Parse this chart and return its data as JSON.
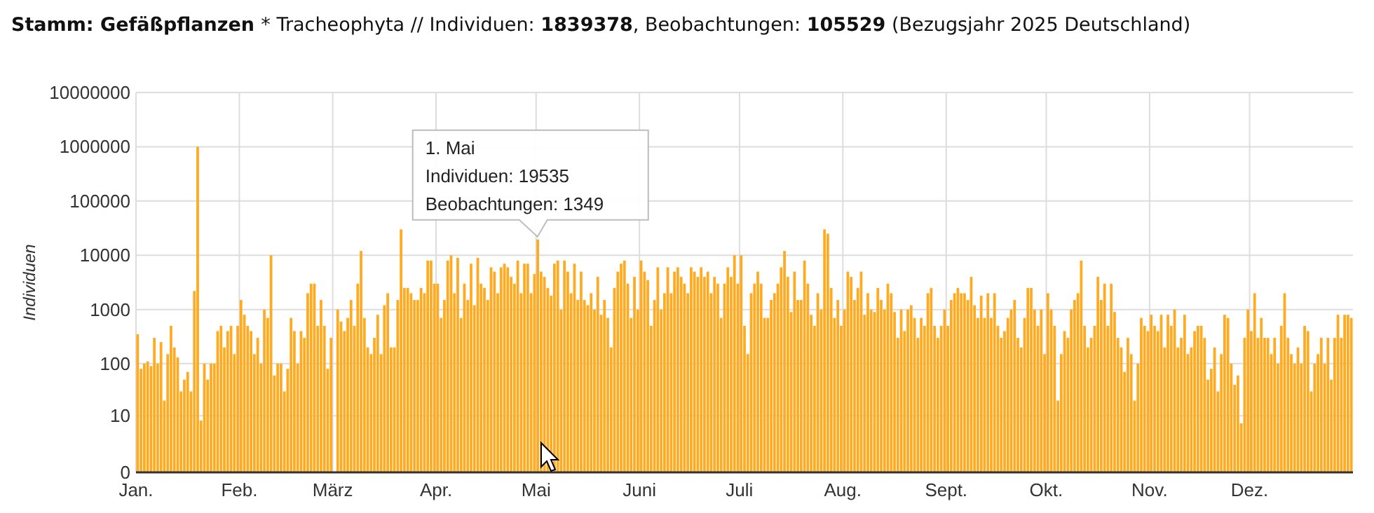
{
  "chart_data": {
    "type": "bar",
    "title": "Stamm: Gefäßpflanzen * Tracheophyta // Individuen: 1839378, Beobachtungen: 105529 (Bezugsjahr 2025 Deutschland)",
    "ylabel": "Individuen",
    "log": true,
    "grid": true,
    "xlim": [
      "2025-01-01",
      "2026-01-01"
    ],
    "xticks": [
      {
        "value": "2025-01-01",
        "label": "Jan."
      },
      {
        "value": "2025-02-01",
        "label": "Feb."
      },
      {
        "value": "2025-03-01",
        "label": "März"
      },
      {
        "value": "2025-04-01",
        "label": "Apr."
      },
      {
        "value": "2025-05-01",
        "label": "Mai"
      },
      {
        "value": "2025-06-01",
        "label": "Juni"
      },
      {
        "value": "2025-07-01",
        "label": "Juli"
      },
      {
        "value": "2025-08-01",
        "label": "Aug."
      },
      {
        "value": "2025-09-01",
        "label": "Sept."
      },
      {
        "value": "2025-10-01",
        "label": "Okt."
      },
      {
        "value": "2025-11-01",
        "label": "Nov."
      },
      {
        "value": "2025-12-01",
        "label": "Dez."
      }
    ],
    "ylim": [
      0,
      10000000
    ],
    "yticks": [
      0,
      10,
      100,
      1000,
      10000,
      100000,
      1000000,
      10000000
    ],
    "annotations": [
      {
        "text": "1. Mai\nIndividuen: 19535\nBeobachtungen: 1349",
        "x": "2025-05-01",
        "y": 19535
      }
    ],
    "x": [
      "2025-01-01",
      "2025-01-02",
      "2025-01-03",
      "2025-01-04",
      "2025-01-05",
      "2025-01-06",
      "2025-01-07",
      "2025-01-08",
      "2025-01-09",
      "2025-01-10",
      "2025-01-11",
      "2025-01-12",
      "2025-01-13",
      "2025-01-14",
      "2025-01-15",
      "2025-01-16",
      "2025-01-17",
      "2025-01-18",
      "2025-01-19",
      "2025-01-20",
      "2025-01-21",
      "2025-01-22",
      "2025-01-23",
      "2025-01-24",
      "2025-01-25",
      "2025-01-26",
      "2025-01-27",
      "2025-01-28",
      "2025-01-29",
      "2025-01-30",
      "2025-01-31",
      "2025-02-01",
      "2025-02-02",
      "2025-02-03",
      "2025-02-04",
      "2025-02-05",
      "2025-02-06",
      "2025-02-07",
      "2025-02-08",
      "2025-02-09",
      "2025-02-10",
      "2025-02-11",
      "2025-02-12",
      "2025-02-13",
      "2025-02-14",
      "2025-02-15",
      "2025-02-16",
      "2025-02-17",
      "2025-02-18",
      "2025-02-19",
      "2025-02-20",
      "2025-02-21",
      "2025-02-22",
      "2025-02-23",
      "2025-02-24",
      "2025-02-25",
      "2025-02-26",
      "2025-02-27",
      "2025-02-28",
      "2025-03-01",
      "2025-03-02",
      "2025-03-03",
      "2025-03-04",
      "2025-03-05",
      "2025-03-06",
      "2025-03-07",
      "2025-03-08",
      "2025-03-09",
      "2025-03-10",
      "2025-03-11",
      "2025-03-12",
      "2025-03-13",
      "2025-03-14",
      "2025-03-15",
      "2025-03-16",
      "2025-03-17",
      "2025-03-18",
      "2025-03-19",
      "2025-03-20",
      "2025-03-21",
      "2025-03-22",
      "2025-03-23",
      "2025-03-24",
      "2025-03-25",
      "2025-03-26",
      "2025-03-27",
      "2025-03-28",
      "2025-03-29",
      "2025-03-30",
      "2025-03-31",
      "2025-04-01",
      "2025-04-02",
      "2025-04-03",
      "2025-04-04",
      "2025-04-05",
      "2025-04-06",
      "2025-04-07",
      "2025-04-08",
      "2025-04-09",
      "2025-04-10",
      "2025-04-11",
      "2025-04-12",
      "2025-04-13",
      "2025-04-14",
      "2025-04-15",
      "2025-04-16",
      "2025-04-17",
      "2025-04-18",
      "2025-04-19",
      "2025-04-20",
      "2025-04-21",
      "2025-04-22",
      "2025-04-23",
      "2025-04-24",
      "2025-04-25",
      "2025-04-26",
      "2025-04-27",
      "2025-04-28",
      "2025-04-29",
      "2025-04-30",
      "2025-05-01",
      "2025-05-02",
      "2025-05-03",
      "2025-05-04",
      "2025-05-05",
      "2025-05-06",
      "2025-05-07",
      "2025-05-08",
      "2025-05-09",
      "2025-05-10",
      "2025-05-11",
      "2025-05-12",
      "2025-05-13",
      "2025-05-14",
      "2025-05-15",
      "2025-05-16",
      "2025-05-17",
      "2025-05-18",
      "2025-05-19",
      "2025-05-20",
      "2025-05-21",
      "2025-05-22",
      "2025-05-23",
      "2025-05-24",
      "2025-05-25",
      "2025-05-26",
      "2025-05-27",
      "2025-05-28",
      "2025-05-29",
      "2025-05-30",
      "2025-05-31",
      "2025-06-01",
      "2025-06-02",
      "2025-06-03",
      "2025-06-04",
      "2025-06-05",
      "2025-06-06",
      "2025-06-07",
      "2025-06-08",
      "2025-06-09",
      "2025-06-10",
      "2025-06-11",
      "2025-06-12",
      "2025-06-13",
      "2025-06-14",
      "2025-06-15",
      "2025-06-16",
      "2025-06-17",
      "2025-06-18",
      "2025-06-19",
      "2025-06-20",
      "2025-06-21",
      "2025-06-22",
      "2025-06-23",
      "2025-06-24",
      "2025-06-25",
      "2025-06-26",
      "2025-06-27",
      "2025-06-28",
      "2025-06-29",
      "2025-06-30",
      "2025-07-01",
      "2025-07-02",
      "2025-07-03",
      "2025-07-04",
      "2025-07-05",
      "2025-07-06",
      "2025-07-07",
      "2025-07-08",
      "2025-07-09",
      "2025-07-10",
      "2025-07-11",
      "2025-07-12",
      "2025-07-13",
      "2025-07-14",
      "2025-07-15",
      "2025-07-16",
      "2025-07-17",
      "2025-07-18",
      "2025-07-19",
      "2025-07-20",
      "2025-07-21",
      "2025-07-22",
      "2025-07-23",
      "2025-07-24",
      "2025-07-25",
      "2025-07-26",
      "2025-07-27",
      "2025-07-28",
      "2025-07-29",
      "2025-07-30",
      "2025-07-31",
      "2025-08-01",
      "2025-08-02",
      "2025-08-03",
      "2025-08-04",
      "2025-08-05",
      "2025-08-06",
      "2025-08-07",
      "2025-08-08",
      "2025-08-09",
      "2025-08-10",
      "2025-08-11",
      "2025-08-12",
      "2025-08-13",
      "2025-08-14",
      "2025-08-15",
      "2025-08-16",
      "2025-08-17",
      "2025-08-18",
      "2025-08-19",
      "2025-08-20",
      "2025-08-21",
      "2025-08-22",
      "2025-08-23",
      "2025-08-24",
      "2025-08-25",
      "2025-08-26",
      "2025-08-27",
      "2025-08-28",
      "2025-08-29",
      "2025-08-30",
      "2025-08-31",
      "2025-09-01",
      "2025-09-02",
      "2025-09-03",
      "2025-09-04",
      "2025-09-05",
      "2025-09-06",
      "2025-09-07",
      "2025-09-08",
      "2025-09-09",
      "2025-09-10",
      "2025-09-11",
      "2025-09-12",
      "2025-09-13",
      "2025-09-14",
      "2025-09-15",
      "2025-09-16",
      "2025-09-17",
      "2025-09-18",
      "2025-09-19",
      "2025-09-20",
      "2025-09-21",
      "2025-09-22",
      "2025-09-23",
      "2025-09-24",
      "2025-09-25",
      "2025-09-26",
      "2025-09-27",
      "2025-09-28",
      "2025-09-29",
      "2025-09-30",
      "2025-10-01",
      "2025-10-02",
      "2025-10-03",
      "2025-10-04",
      "2025-10-05",
      "2025-10-06",
      "2025-10-07",
      "2025-10-08",
      "2025-10-09",
      "2025-10-10",
      "2025-10-11",
      "2025-10-12",
      "2025-10-13",
      "2025-10-14",
      "2025-10-15",
      "2025-10-16",
      "2025-10-17",
      "2025-10-18",
      "2025-10-19",
      "2025-10-20",
      "2025-10-21",
      "2025-10-22",
      "2025-10-23",
      "2025-10-24",
      "2025-10-25",
      "2025-10-26",
      "2025-10-27",
      "2025-10-28",
      "2025-10-29",
      "2025-10-30",
      "2025-10-31",
      "2025-11-01",
      "2025-11-02",
      "2025-11-03",
      "2025-11-04",
      "2025-11-05",
      "2025-11-06",
      "2025-11-07",
      "2025-11-08",
      "2025-11-09",
      "2025-11-10",
      "2025-11-11",
      "2025-11-12",
      "2025-11-13",
      "2025-11-14",
      "2025-11-15",
      "2025-11-16",
      "2025-11-17",
      "2025-11-18",
      "2025-11-19",
      "2025-11-20",
      "2025-11-21",
      "2025-11-22",
      "2025-11-23",
      "2025-11-24",
      "2025-11-25",
      "2025-11-26",
      "2025-11-27",
      "2025-11-28",
      "2025-11-29",
      "2025-11-30",
      "2025-12-01",
      "2025-12-02",
      "2025-12-03",
      "2025-12-04",
      "2025-12-05",
      "2025-12-06",
      "2025-12-07",
      "2025-12-08",
      "2025-12-09",
      "2025-12-10",
      "2025-12-11",
      "2025-12-12",
      "2025-12-13",
      "2025-12-14",
      "2025-12-15",
      "2025-12-16",
      "2025-12-17",
      "2025-12-18",
      "2025-12-19",
      "2025-12-20",
      "2025-12-21",
      "2025-12-22",
      "2025-12-23",
      "2025-12-24",
      "2025-12-25",
      "2025-12-26",
      "2025-12-27",
      "2025-12-28",
      "2025-12-29",
      "2025-12-30",
      "2025-12-31"
    ],
    "series": [
      {
        "color": "#ffaa1f",
        "values": [
          350,
          80,
          100,
          110,
          90,
          300,
          100,
          250,
          20,
          150,
          500,
          200,
          130,
          30,
          50,
          70,
          30,
          2200,
          1000000,
          8,
          100,
          50,
          100,
          100,
          400,
          500,
          200,
          400,
          500,
          150,
          500,
          1500,
          800,
          500,
          400,
          150,
          300,
          100,
          1000,
          700,
          10000,
          60,
          100,
          100,
          30,
          80,
          700,
          400,
          100,
          400,
          300,
          2000,
          3000,
          3000,
          500,
          1500,
          500,
          80,
          300,
          0,
          1000,
          600,
          400,
          700,
          1500,
          500,
          3000,
          12000,
          700,
          200,
          150,
          300,
          800,
          150,
          1200,
          2000,
          200,
          200,
          1500,
          30000,
          2500,
          2500,
          2000,
          1500,
          1500,
          2500,
          2000,
          8000,
          8000,
          3000,
          3000,
          700,
          1500,
          8000,
          10000,
          2000,
          9000,
          700,
          3000,
          1500,
          7000,
          1200,
          9000,
          3000,
          2500,
          1500,
          6000,
          5000,
          2000,
          6000,
          7000,
          6000,
          4000,
          3000,
          8000,
          2000,
          7000,
          7000,
          2000,
          4500,
          19535,
          5000,
          4000,
          2500,
          1800,
          7000,
          8000,
          1000,
          8000,
          5000,
          2000,
          7000,
          1500,
          5000,
          1500,
          1200,
          2000,
          1000,
          4000,
          800,
          1500,
          700,
          200,
          2500,
          5000,
          7000,
          8000,
          3000,
          700,
          4000,
          1000,
          8000,
          5000,
          3500,
          500,
          1500,
          6000,
          1000,
          2000,
          6000,
          2000,
          5000,
          6000,
          4000,
          3000,
          2000,
          6000,
          5000,
          4000,
          6000,
          4000,
          5000,
          2000,
          4000,
          3000,
          700,
          3000,
          6000,
          4000,
          10000,
          3000,
          10000,
          500,
          150,
          2000,
          3000,
          5000,
          3000,
          700,
          700,
          1500,
          2000,
          3000,
          6000,
          12000,
          4000,
          900,
          5000,
          1500,
          1500,
          8000,
          3000,
          800,
          500,
          2000,
          1000,
          30000,
          25000,
          2500,
          700,
          1500,
          500,
          1000,
          5000,
          4000,
          1500,
          2500,
          5000,
          800,
          2000,
          1000,
          900,
          2500,
          1500,
          1000,
          3000,
          2000,
          900,
          300,
          1000,
          400,
          1000,
          1200,
          700,
          300,
          700,
          500,
          2000,
          2500,
          500,
          300,
          500,
          1000,
          500,
          1500,
          2000,
          2500,
          2000,
          2000,
          1500,
          4000,
          1200,
          700,
          1800,
          700,
          2000,
          700,
          2000,
          500,
          300,
          400,
          700,
          1000,
          1500,
          300,
          200,
          700,
          2500,
          2500,
          1000,
          500,
          1000,
          150,
          2000,
          1000,
          500,
          20,
          150,
          400,
          300,
          1000,
          1500,
          2000,
          8000,
          500,
          200,
          300,
          500,
          4000,
          1500,
          3000,
          500,
          3000,
          900,
          300,
          200,
          70,
          300,
          150,
          20,
          100,
          700,
          500,
          400,
          800,
          500,
          400,
          800,
          200,
          800,
          500,
          1000,
          200,
          300,
          800,
          150,
          200,
          400,
          500,
          500,
          300,
          50,
          80,
          200,
          30,
          150,
          800,
          700,
          100,
          40,
          60,
          7,
          300,
          1000,
          400,
          2000,
          300,
          700,
          300,
          300,
          150,
          300,
          100,
          500,
          2000,
          300,
          150,
          100,
          200,
          100,
          500,
          400,
          30,
          100,
          150,
          300,
          100,
          300,
          50,
          300,
          800,
          300,
          800,
          800,
          700
        ]
      }
    ]
  }
}
